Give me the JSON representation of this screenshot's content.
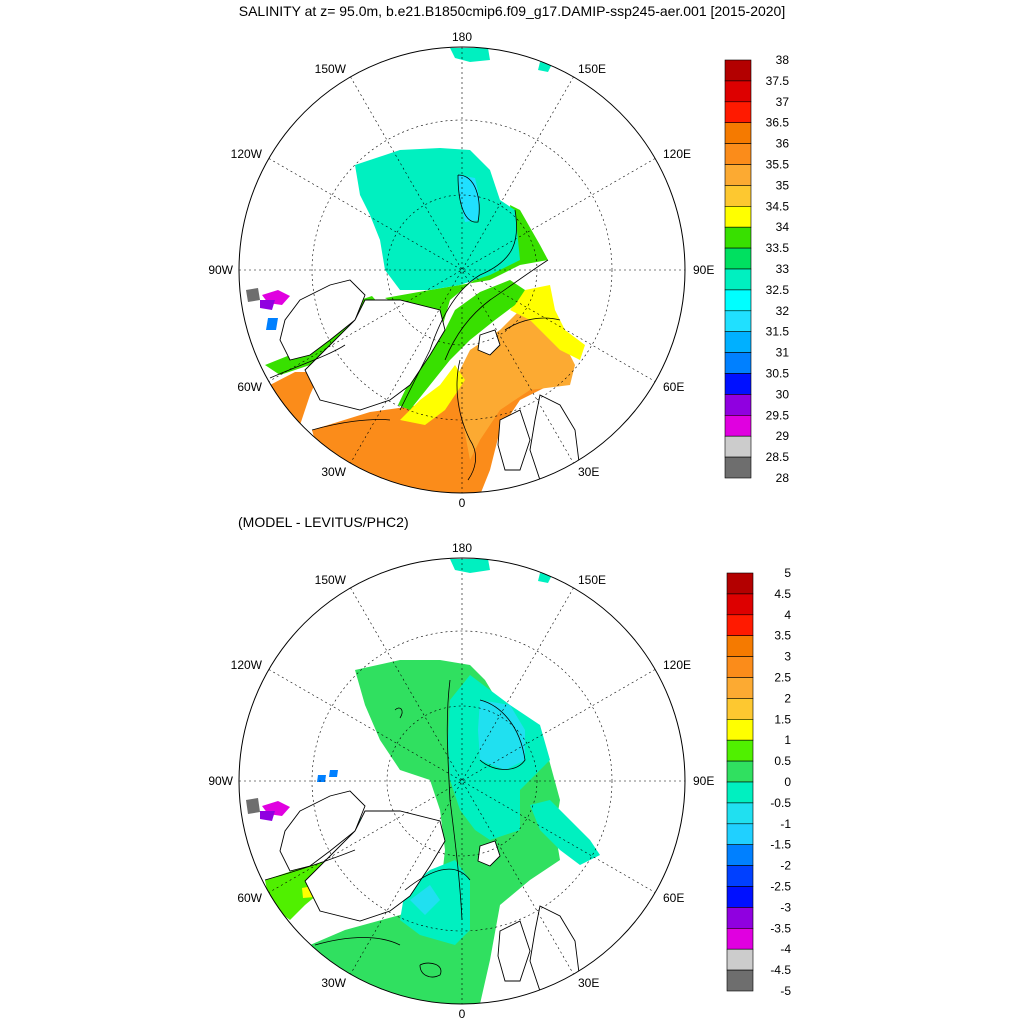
{
  "title": "SALINITY at z=  95.0m, b.e21.B1850cmip6.f09_g17.DAMIP-ssp245-aer.001 [2015-2020]",
  "subtitle": "(MODEL - LEVITUS/PHC2)",
  "map_labels": {
    "lon_180": "180",
    "lon_0": "0",
    "lon_150W": "150W",
    "lon_150E": "150E",
    "lon_120W": "120W",
    "lon_120E": "120E",
    "lon_90W": "90W",
    "lon_90E": "90E",
    "lon_60W": "60W",
    "lon_60E": "60E",
    "lon_30W": "30W",
    "lon_30E": "30E"
  },
  "colorbar_top": {
    "labels": [
      "38",
      "37.5",
      "37",
      "36.5",
      "36",
      "35.5",
      "35",
      "34.5",
      "34",
      "33.5",
      "33",
      "32.5",
      "32",
      "31.5",
      "31",
      "30.5",
      "30",
      "29.5",
      "29",
      "28.5",
      "28"
    ],
    "colors": [
      "#b30000",
      "#dd0000",
      "#ff1a00",
      "#f57a00",
      "#fb8c1a",
      "#fcaa32",
      "#fdc830",
      "#ffff00",
      "#38e000",
      "#00e060",
      "#00f0c0",
      "#00ffff",
      "#20e0ff",
      "#00b0ff",
      "#0080ff",
      "#0010ff",
      "#9000e0",
      "#e000e0",
      "#cccccc",
      "#6e6e6e"
    ]
  },
  "colorbar_bottom": {
    "labels": [
      "5",
      "4.5",
      "4",
      "3.5",
      "3",
      "2.5",
      "2",
      "1.5",
      "1",
      "0.5",
      "0",
      "-0.5",
      "-1",
      "-1.5",
      "-2",
      "-2.5",
      "-3",
      "-3.5",
      "-4",
      "-4.5",
      "-5"
    ],
    "colors": [
      "#b30000",
      "#dd0000",
      "#ff1a00",
      "#f57a00",
      "#fb8c1a",
      "#fcaa32",
      "#fdc830",
      "#ffff00",
      "#50f000",
      "#30e060",
      "#00f0c0",
      "#20e0f0",
      "#20d0ff",
      "#0080ff",
      "#0040ff",
      "#0010ff",
      "#9000e0",
      "#e000e0",
      "#cccccc",
      "#6e6e6e"
    ]
  }
}
